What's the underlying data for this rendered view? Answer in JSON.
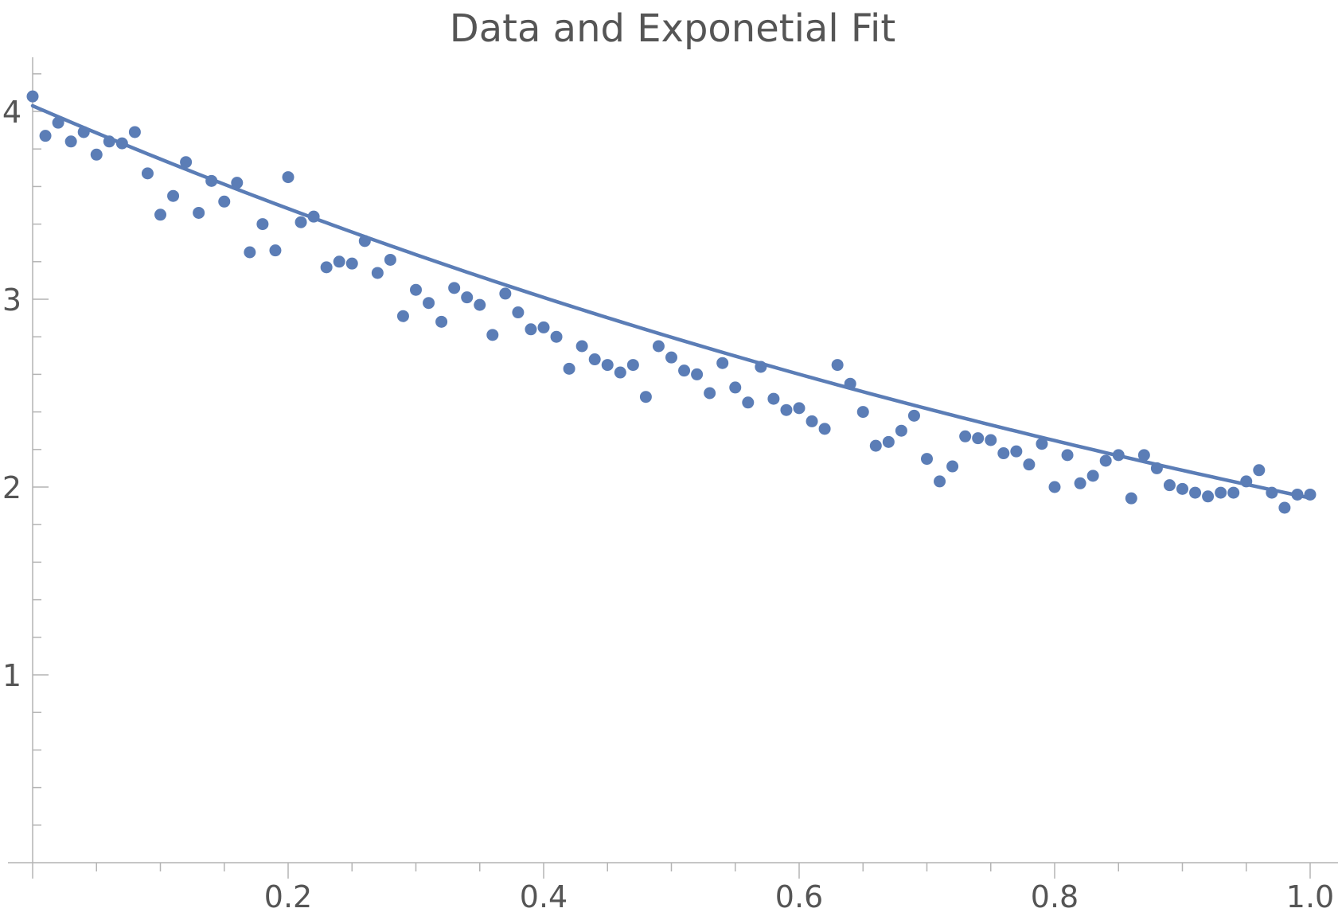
{
  "chart_data": {
    "type": "scatter",
    "title": "Data and Exponetial Fit",
    "xlabel": "",
    "ylabel": "",
    "xlim": [
      0,
      1.0
    ],
    "ylim": [
      0,
      4.25
    ],
    "x_ticks": [
      {
        "value": 0.2,
        "label": "0.2"
      },
      {
        "value": 0.4,
        "label": "0.4"
      },
      {
        "value": 0.6,
        "label": "0.6"
      },
      {
        "value": 0.8,
        "label": "0.8"
      },
      {
        "value": 1.0,
        "label": "1.0"
      }
    ],
    "y_ticks": [
      {
        "value": 1,
        "label": "1"
      },
      {
        "value": 2,
        "label": "2"
      },
      {
        "value": 3,
        "label": "3"
      },
      {
        "value": 4,
        "label": "4"
      }
    ],
    "grid": false,
    "color": "#5b7db6",
    "series": [
      {
        "kind": "points",
        "x": [
          0.0,
          0.01,
          0.02,
          0.03,
          0.04,
          0.05,
          0.06,
          0.07,
          0.08,
          0.09,
          0.1,
          0.11,
          0.12,
          0.13,
          0.14,
          0.15,
          0.16,
          0.17,
          0.18,
          0.19,
          0.2,
          0.21,
          0.22,
          0.23,
          0.24,
          0.25,
          0.26,
          0.27,
          0.28,
          0.29,
          0.3,
          0.31,
          0.32,
          0.33,
          0.34,
          0.35,
          0.36,
          0.37,
          0.38,
          0.39,
          0.4,
          0.41,
          0.42,
          0.43,
          0.44,
          0.45,
          0.46,
          0.47,
          0.48,
          0.49,
          0.5,
          0.51,
          0.52,
          0.53,
          0.54,
          0.55,
          0.56,
          0.57,
          0.58,
          0.59,
          0.6,
          0.61,
          0.62,
          0.63,
          0.64,
          0.65,
          0.66,
          0.67,
          0.68,
          0.69,
          0.7,
          0.71,
          0.72,
          0.73,
          0.74,
          0.75,
          0.76,
          0.77,
          0.78,
          0.79,
          0.8,
          0.81,
          0.82,
          0.83,
          0.84,
          0.85,
          0.86,
          0.87,
          0.88,
          0.89,
          0.9,
          0.91,
          0.92,
          0.93,
          0.94,
          0.95,
          0.96,
          0.97,
          0.98,
          0.99,
          1.0
        ],
        "y": [
          4.08,
          3.87,
          3.94,
          3.84,
          3.89,
          3.77,
          3.84,
          3.83,
          3.89,
          3.67,
          3.45,
          3.55,
          3.73,
          3.46,
          3.63,
          3.52,
          3.62,
          3.25,
          3.4,
          3.26,
          3.65,
          3.41,
          3.44,
          3.17,
          3.2,
          3.19,
          3.31,
          3.14,
          3.21,
          2.91,
          3.05,
          2.98,
          2.88,
          3.06,
          3.01,
          2.97,
          2.81,
          3.03,
          2.93,
          2.84,
          2.85,
          2.8,
          2.63,
          2.75,
          2.68,
          2.65,
          2.61,
          2.65,
          2.48,
          2.75,
          2.69,
          2.62,
          2.6,
          2.5,
          2.66,
          2.53,
          2.45,
          2.64,
          2.47,
          2.41,
          2.42,
          2.35,
          2.31,
          2.65,
          2.55,
          2.4,
          2.22,
          2.24,
          2.3,
          2.38,
          2.15,
          2.03,
          2.11,
          2.27,
          2.26,
          2.25,
          2.18,
          2.19,
          2.12,
          2.23,
          2.0,
          2.17,
          2.02,
          2.06,
          2.14,
          2.17,
          1.94,
          2.17,
          2.1,
          2.01,
          1.99,
          1.97,
          1.95,
          1.97,
          1.97,
          2.03,
          2.09,
          1.97,
          1.89,
          1.96,
          1.96
        ]
      },
      {
        "kind": "fit",
        "model": "a*exp(-b*x)",
        "a": 4.03,
        "b": 0.73
      }
    ]
  }
}
